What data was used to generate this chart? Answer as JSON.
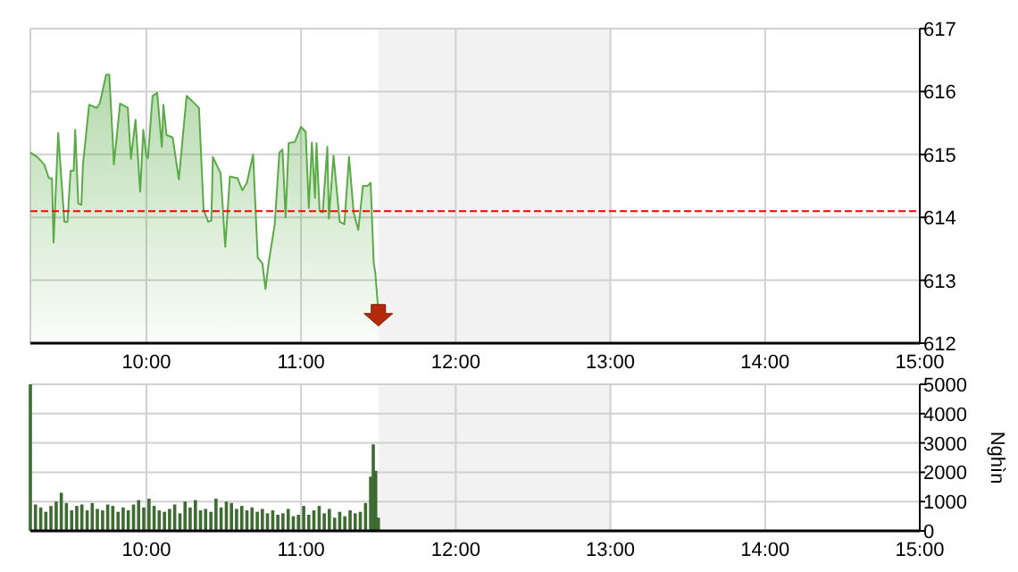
{
  "chart_data": [
    {
      "type": "area",
      "xlim": [
        9.25,
        15
      ],
      "xticks": [
        {
          "value": 10,
          "label": "10:00"
        },
        {
          "value": 11,
          "label": "11:00"
        },
        {
          "value": 12,
          "label": "12:00"
        },
        {
          "value": 13,
          "label": "13:00"
        },
        {
          "value": 14,
          "label": "14:00"
        },
        {
          "value": 15,
          "label": "15:00"
        }
      ],
      "ylim": [
        612,
        617
      ],
      "yticks": [
        612,
        613,
        614,
        615,
        616,
        617
      ],
      "grid": true,
      "marker": "none",
      "line_style": "solid",
      "bands": [
        {
          "axis": "x",
          "from": 11.5,
          "to": 13,
          "color": "#f2f2f2"
        }
      ],
      "ref_lines": [
        {
          "axis": "y",
          "value": 614.1,
          "color": "#ff0000",
          "line_style": "dashed"
        }
      ],
      "series": [
        {
          "color": "#5aab47",
          "x": [
            9.25,
            9.295,
            9.34,
            9.37,
            9.39,
            9.4,
            9.43,
            9.47,
            9.49,
            9.51,
            9.53,
            9.54,
            9.56,
            9.58,
            9.59,
            9.63,
            9.68,
            9.7,
            9.74,
            9.76,
            9.78,
            9.79,
            9.83,
            9.88,
            9.9,
            9.93,
            9.96,
            9.98,
            10.0,
            10.01,
            10.04,
            10.07,
            10.1,
            10.11,
            10.13,
            10.17,
            10.21,
            10.26,
            10.3,
            10.34,
            10.37,
            10.4,
            10.42,
            10.43,
            10.48,
            10.51,
            10.54,
            10.59,
            10.62,
            10.65,
            10.69,
            10.72,
            10.75,
            10.77,
            10.79,
            10.83,
            10.86,
            10.88,
            10.9,
            10.92,
            10.96,
            11.0,
            11.03,
            11.05,
            11.07,
            11.09,
            11.1,
            11.12,
            11.14,
            11.17,
            11.18,
            11.21,
            11.25,
            11.28,
            11.31,
            11.34,
            11.37,
            11.4,
            11.43,
            11.45,
            11.47,
            11.48,
            11.5
          ],
          "values": [
            615.03,
            614.96,
            614.84,
            614.62,
            614.62,
            613.6,
            615.34,
            613.93,
            613.93,
            614.74,
            614.74,
            615.39,
            614.22,
            614.2,
            614.84,
            615.79,
            615.74,
            615.82,
            616.27,
            616.27,
            615.36,
            614.84,
            615.81,
            615.74,
            614.93,
            615.55,
            614.41,
            615.39,
            614.98,
            614.94,
            615.93,
            615.98,
            615.12,
            615.79,
            615.31,
            615.27,
            614.6,
            615.93,
            615.84,
            615.74,
            614.12,
            613.93,
            613.95,
            614.96,
            614.7,
            613.53,
            614.65,
            614.62,
            614.43,
            614.55,
            615.0,
            613.36,
            613.27,
            612.86,
            613.27,
            613.89,
            615.03,
            615.08,
            614.0,
            615.18,
            615.2,
            615.44,
            615.36,
            614.15,
            615.19,
            614.31,
            615.18,
            614.1,
            614.08,
            615.12,
            613.98,
            614.98,
            613.93,
            613.89,
            614.96,
            614.08,
            613.8,
            614.5,
            614.5,
            614.55,
            613.27,
            613.12,
            612.5
          ]
        }
      ]
    },
    {
      "type": "bar",
      "ylabel": "Nghìn",
      "xlim": [
        9.25,
        15
      ],
      "xticks": [
        {
          "value": 10,
          "label": "10:00"
        },
        {
          "value": 11,
          "label": "11:00"
        },
        {
          "value": 12,
          "label": "12:00"
        },
        {
          "value": 13,
          "label": "13:00"
        },
        {
          "value": 14,
          "label": "14:00"
        },
        {
          "value": 15,
          "label": "15:00"
        }
      ],
      "ylim": [
        0,
        5000
      ],
      "yticks": [
        0,
        1000,
        2000,
        3000,
        4000,
        5000
      ],
      "grid": true,
      "bands": [
        {
          "axis": "x",
          "from": 11.5,
          "to": 13,
          "color": "#f2f2f2"
        }
      ],
      "series": [
        {
          "color": "#3d6b32",
          "x": [
            9.25,
            9.283,
            9.317,
            9.35,
            9.383,
            9.417,
            9.45,
            9.483,
            9.517,
            9.55,
            9.583,
            9.617,
            9.65,
            9.683,
            9.717,
            9.75,
            9.783,
            9.817,
            9.85,
            9.883,
            9.917,
            9.95,
            9.983,
            10.017,
            10.05,
            10.083,
            10.117,
            10.15,
            10.183,
            10.217,
            10.25,
            10.283,
            10.317,
            10.35,
            10.383,
            10.417,
            10.45,
            10.483,
            10.517,
            10.55,
            10.583,
            10.617,
            10.65,
            10.683,
            10.717,
            10.75,
            10.783,
            10.817,
            10.85,
            10.883,
            10.917,
            10.95,
            10.983,
            11.017,
            11.05,
            11.083,
            11.117,
            11.15,
            11.183,
            11.217,
            11.25,
            11.283,
            11.317,
            11.35,
            11.383,
            11.417,
            11.45,
            11.467,
            11.483,
            11.5
          ],
          "values": [
            5000,
            900,
            800,
            650,
            850,
            1000,
            1300,
            950,
            700,
            850,
            900,
            700,
            950,
            750,
            700,
            900,
            850,
            650,
            800,
            700,
            900,
            1050,
            800,
            1100,
            850,
            700,
            650,
            750,
            900,
            600,
            1000,
            800,
            1050,
            700,
            750,
            650,
            1100,
            800,
            1000,
            950,
            750,
            850,
            700,
            800,
            650,
            750,
            600,
            700,
            550,
            600,
            750,
            500,
            550,
            850,
            550,
            700,
            850,
            600,
            750,
            450,
            650,
            500,
            700,
            600,
            650,
            950,
            1850,
            2950,
            2050,
            450
          ]
        }
      ]
    }
  ]
}
